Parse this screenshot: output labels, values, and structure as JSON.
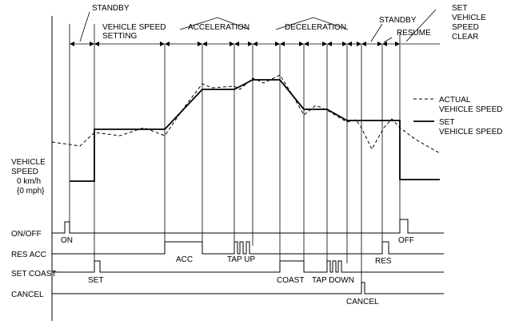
{
  "phases": {
    "standby_1": "STANDBY",
    "speed_setting_1": "VEHICLE SPEED",
    "speed_setting_2": "SETTING",
    "acceleration": "ACCELERATION",
    "deceleration": "DECELERATION",
    "standby_2": "STANDBY",
    "resume": "RESUME",
    "clear_1": "SET",
    "clear_2": "VEHICLE",
    "clear_3": "SPEED",
    "clear_4": "CLEAR"
  },
  "legend": {
    "actual_1": "ACTUAL",
    "actual_2": "VEHICLE SPEED",
    "set_1": "SET",
    "set_2": "VEHICLE SPEED"
  },
  "axis": {
    "speed_1": "VEHICLE",
    "speed_2": "SPEED",
    "speed_3": "0 km/h",
    "speed_4": "{0 mph}"
  },
  "signals": {
    "on_off": "ON/OFF",
    "res_acc": "RES ACC",
    "set_coast": "SET COAST",
    "cancel": "CANCEL"
  },
  "events": {
    "on": "ON",
    "off": "OFF",
    "acc": "ACC",
    "tap_up": "TAP UP",
    "res": "RES",
    "set": "SET",
    "coast": "COAST",
    "tap_down": "TAP DOWN",
    "cancel": "CANCEL"
  }
}
